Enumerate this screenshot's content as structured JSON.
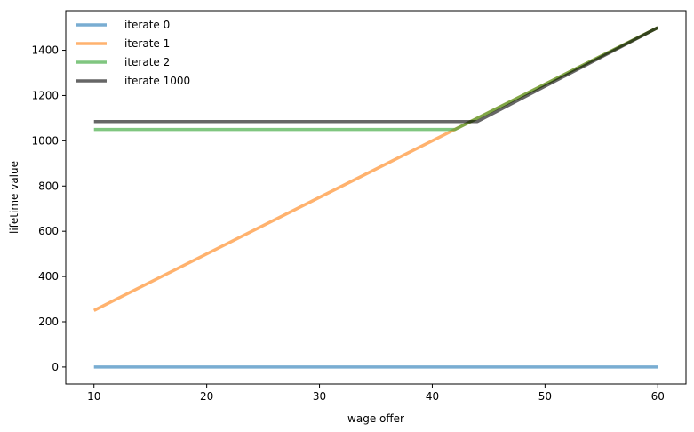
{
  "chart_data": {
    "type": "line",
    "xlabel": "wage offer",
    "ylabel": "lifetime value",
    "xlim": [
      7.5,
      62.5
    ],
    "ylim": [
      -75,
      1575
    ],
    "xticks": [
      10,
      20,
      30,
      40,
      50,
      60
    ],
    "yticks": [
      0,
      200,
      400,
      600,
      800,
      1000,
      1200,
      1400
    ],
    "grid": false,
    "legend_position": "top-left",
    "series": [
      {
        "name": "iterate 0",
        "color": "#1f77b4",
        "x": [
          10,
          60
        ],
        "y": [
          0,
          0
        ]
      },
      {
        "name": "iterate 1",
        "color": "#ff7f0e",
        "x": [
          10,
          60
        ],
        "y": [
          250,
          1500
        ]
      },
      {
        "name": "iterate 2",
        "color": "#2ca02c",
        "x": [
          10,
          42,
          60
        ],
        "y": [
          1050,
          1050,
          1500
        ]
      },
      {
        "name": "iterate 1000",
        "color": "#000000",
        "x": [
          10,
          44,
          60
        ],
        "y": [
          1085,
          1085,
          1500
        ]
      }
    ]
  }
}
